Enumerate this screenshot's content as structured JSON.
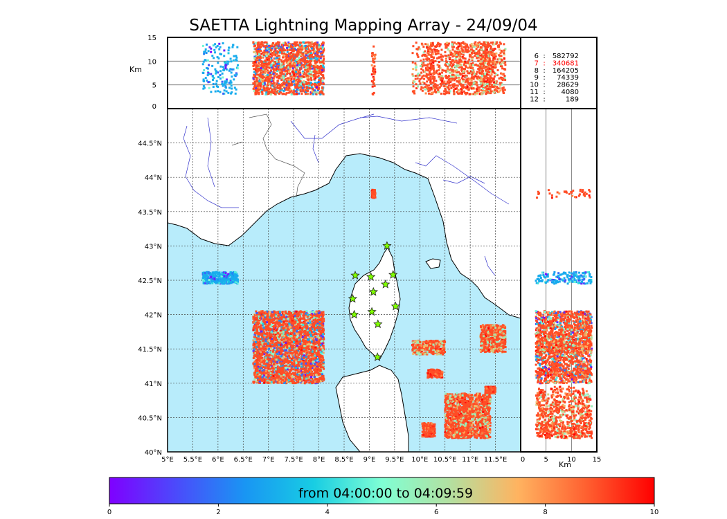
{
  "title": "SAETTA Lightning Mapping Array - 24/09/04",
  "chart_data": {
    "type": "scatter",
    "title": "SAETTA Lightning Mapping Array - 24/09/04",
    "map": {
      "lon_range": [
        5,
        12
      ],
      "lat_range": [
        40,
        45
      ],
      "xticks": [
        "5°E",
        "5.5°E",
        "6°E",
        "6.5°E",
        "7°E",
        "7.5°E",
        "8°E",
        "8.5°E",
        "9°E",
        "9.5°E",
        "10°E",
        "10.5°E",
        "11°E",
        "11.5°E"
      ],
      "xtick_values": [
        5,
        5.5,
        6,
        6.5,
        7,
        7.5,
        8,
        8.5,
        9,
        9.5,
        10,
        10.5,
        11,
        11.5
      ],
      "yticks": [
        "40°N",
        "40.5°N",
        "41°N",
        "41.5°N",
        "42°N",
        "42.5°N",
        "43°N",
        "43.5°N",
        "44°N",
        "44.5°N"
      ],
      "ytick_values": [
        40,
        40.5,
        41,
        41.5,
        42,
        42.5,
        43,
        43.5,
        44,
        44.5
      ],
      "grid": true
    },
    "altitude_panel_top": {
      "ylabel": "Km",
      "yticks": [
        "0",
        "5",
        "10",
        "15"
      ],
      "ylim": [
        0,
        15
      ]
    },
    "altitude_panel_right": {
      "xlabel": "Km",
      "xticks": [
        "0",
        "5",
        "10",
        "15"
      ],
      "xlim": [
        0,
        15
      ]
    },
    "station_count_legend": [
      {
        "stations": "6",
        "sources": "582792",
        "highlight": false
      },
      {
        "stations": "7",
        "sources": "340681",
        "highlight": true
      },
      {
        "stations": "8",
        "sources": "164205",
        "highlight": false
      },
      {
        "stations": "9",
        "sources": "74339",
        "highlight": false
      },
      {
        "stations": "10",
        "sources": "28629",
        "highlight": false
      },
      {
        "stations": "11",
        "sources": "4080",
        "highlight": false
      },
      {
        "stations": "12",
        "sources": "189",
        "highlight": false
      }
    ],
    "stations_lonlat": [
      [
        9.35,
        43.0
      ],
      [
        8.72,
        42.57
      ],
      [
        9.03,
        42.55
      ],
      [
        9.47,
        42.58
      ],
      [
        9.08,
        42.33
      ],
      [
        9.32,
        42.44
      ],
      [
        8.67,
        42.23
      ],
      [
        9.52,
        42.12
      ],
      [
        9.05,
        42.04
      ],
      [
        8.7,
        42.0
      ],
      [
        9.17,
        41.86
      ],
      [
        9.16,
        41.38
      ]
    ],
    "colorbar": {
      "label": "from 04:00:00 to 04:09:59",
      "ticks": [
        "0",
        "2",
        "4",
        "6",
        "8",
        "10"
      ],
      "range": [
        0,
        10
      ],
      "colormap": "rainbow"
    },
    "clusters": [
      {
        "lon": [
          6.7,
          8.1
        ],
        "lat": [
          41.0,
          42.05
        ],
        "time": [
          0,
          10
        ],
        "dominant_time": 9
      },
      {
        "lon": [
          10.5,
          11.4
        ],
        "lat": [
          40.2,
          40.85
        ],
        "time": [
          5,
          10
        ],
        "dominant_time": 9
      },
      {
        "lon": [
          11.2,
          11.7
        ],
        "lat": [
          41.45,
          41.85
        ],
        "time": [
          5,
          10
        ],
        "dominant_time": 9
      },
      {
        "lon": [
          9.85,
          10.5
        ],
        "lat": [
          41.42,
          41.62
        ],
        "time": [
          5,
          10
        ],
        "dominant_time": 9
      },
      {
        "lon": [
          10.15,
          10.45
        ],
        "lat": [
          41.08,
          41.2
        ],
        "time": [
          8,
          10
        ],
        "dominant_time": 9
      },
      {
        "lon": [
          10.05,
          10.3
        ],
        "lat": [
          40.22,
          40.42
        ],
        "time": [
          8,
          10
        ],
        "dominant_time": 9
      },
      {
        "lon": [
          11.3,
          11.5
        ],
        "lat": [
          40.85,
          40.95
        ],
        "time": [
          8,
          10
        ],
        "dominant_time": 9
      },
      {
        "lon": [
          5.7,
          6.4
        ],
        "lat": [
          42.45,
          42.62
        ],
        "time": [
          0,
          5
        ],
        "dominant_time": 3
      },
      {
        "lon": [
          9.05,
          9.12
        ],
        "lat": [
          43.7,
          43.82
        ],
        "time": [
          8,
          10
        ],
        "dominant_time": 9
      }
    ],
    "colors": {
      "sea": "#b8ecfb",
      "land": "#ffffff",
      "rivers": "#3333cc",
      "station": "#7fff00",
      "highlight": "#ff0000"
    }
  }
}
